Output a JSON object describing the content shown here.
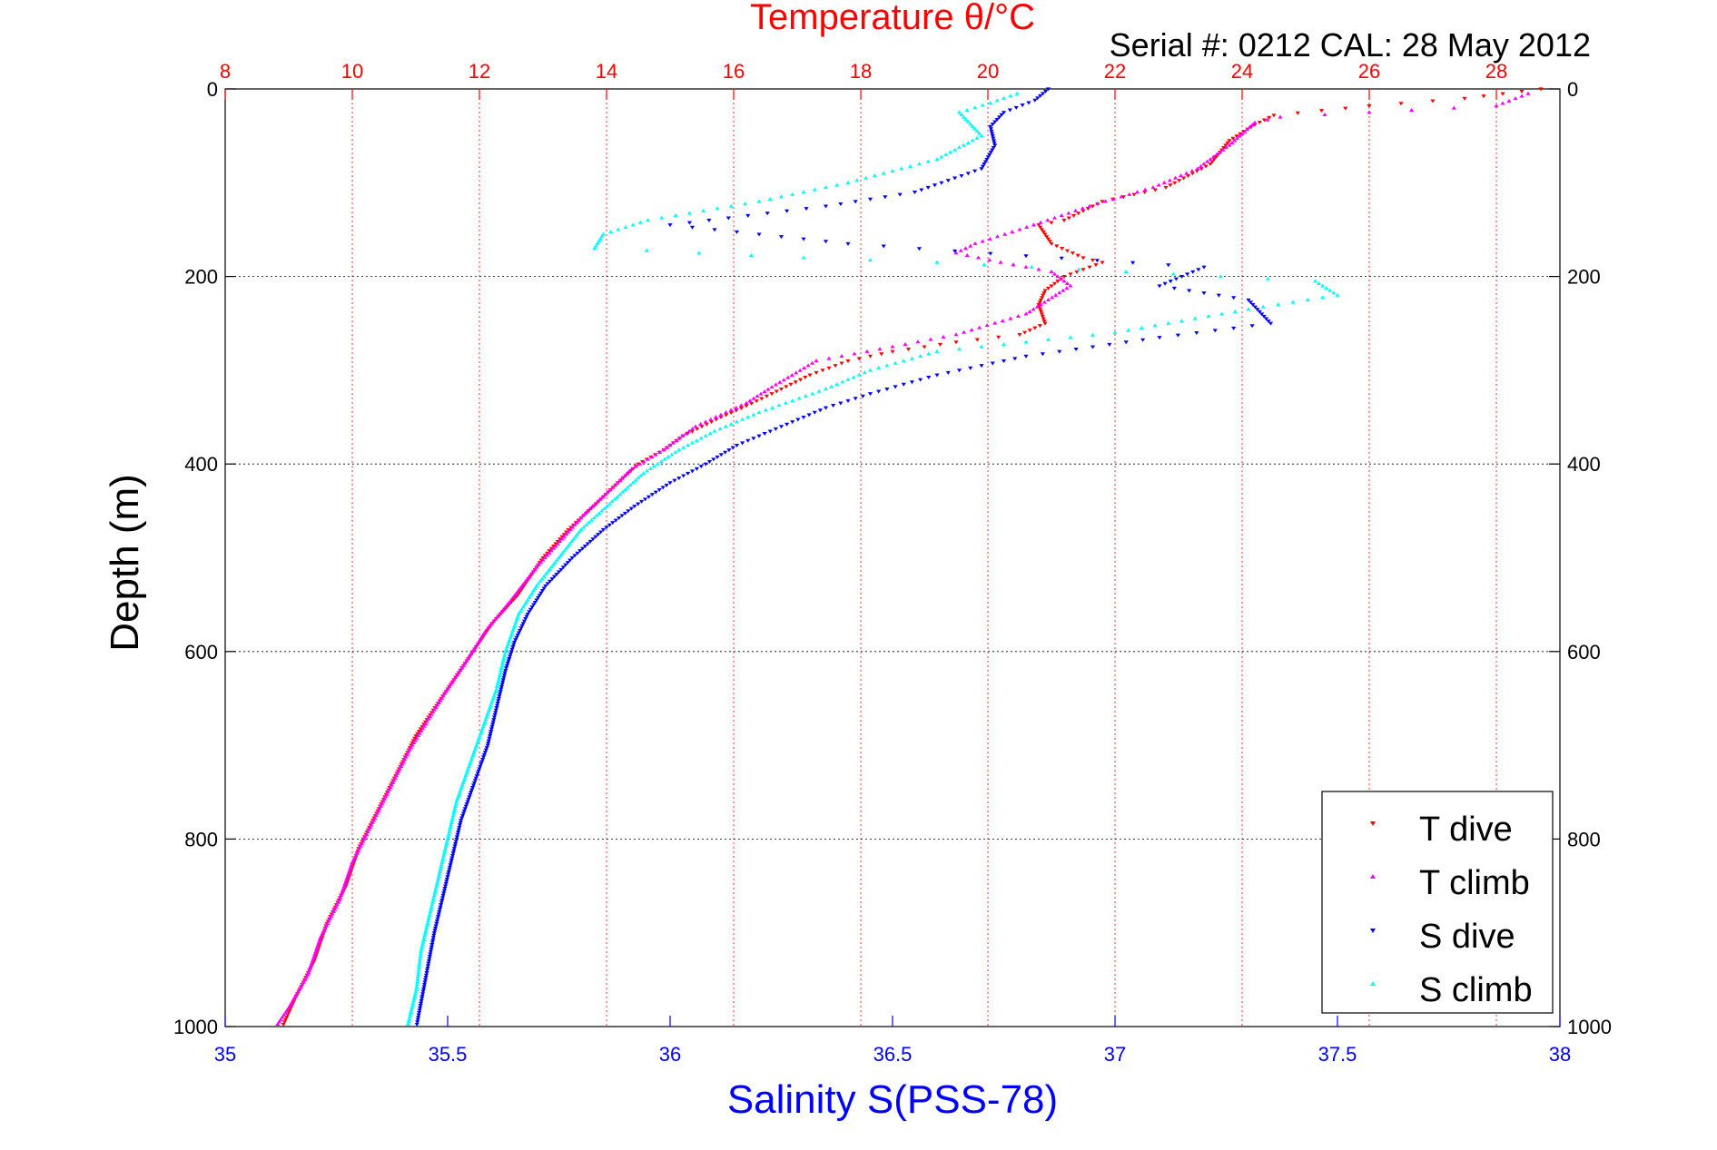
{
  "header": {
    "top_title": "Temperature θ/°C",
    "serial_info": "Serial #: 0212  CAL: 28 May 2012"
  },
  "axes": {
    "ylabel": "Depth (m)",
    "bottom_label": "Salinity S(PSS-78)"
  },
  "legend": {
    "items": [
      {
        "label": "T dive",
        "color": "#ff0000",
        "marker": "triangle-down"
      },
      {
        "label": "T climb",
        "color": "#ff00ff",
        "marker": "triangle-up"
      },
      {
        "label": "S dive",
        "color": "#0000ff",
        "marker": "triangle-down"
      },
      {
        "label": "S climb",
        "color": "#00ffff",
        "marker": "triangle-up"
      }
    ]
  },
  "colors": {
    "temperature_axis": "#ff0000",
    "salinity_axis": "#0000ff",
    "t_dive": "#ff0000",
    "t_climb": "#ff00ff",
    "s_dive": "#0000ff",
    "s_climb": "#00ffff"
  },
  "chart_data": {
    "type": "scatter",
    "y_axis": {
      "label": "Depth (m)",
      "range": [
        0,
        1000
      ],
      "reversed": true,
      "ticks": [
        0,
        200,
        400,
        600,
        800,
        1000
      ]
    },
    "top_axis": {
      "label": "Temperature θ/°C",
      "range": [
        8,
        29
      ],
      "ticks": [
        8,
        10,
        12,
        14,
        16,
        18,
        20,
        22,
        24,
        26,
        28
      ],
      "grid": true
    },
    "bottom_axis": {
      "label": "Salinity S(PSS-78)",
      "range": [
        35,
        38
      ],
      "ticks": [
        35,
        35.5,
        36,
        36.5,
        37,
        37.5,
        38
      ]
    },
    "legend_position": "bottom-right",
    "series": [
      {
        "name": "T dive",
        "axis": "temperature",
        "marker": "v",
        "points": [
          [
            28.7,
            0
          ],
          [
            27.5,
            10
          ],
          [
            26,
            18
          ],
          [
            24.5,
            28
          ],
          [
            24.2,
            38
          ],
          [
            23.8,
            55
          ],
          [
            23.5,
            80
          ],
          [
            22.8,
            105
          ],
          [
            21.8,
            120
          ],
          [
            21.2,
            140
          ],
          [
            20.8,
            145
          ],
          [
            21,
            165
          ],
          [
            21.5,
            180
          ],
          [
            21.8,
            185
          ],
          [
            21.2,
            200
          ],
          [
            20.9,
            215
          ],
          [
            20.8,
            230
          ],
          [
            20.9,
            250
          ],
          [
            20.5,
            262
          ],
          [
            19.5,
            270
          ],
          [
            18.5,
            280
          ],
          [
            17.8,
            290
          ],
          [
            17.2,
            305
          ],
          [
            16.6,
            325
          ],
          [
            16.2,
            338
          ],
          [
            15.8,
            350
          ],
          [
            15.2,
            370
          ],
          [
            14.9,
            385
          ],
          [
            14.5,
            400
          ],
          [
            14.1,
            425
          ],
          [
            13.8,
            445
          ],
          [
            13.4,
            470
          ],
          [
            13.0,
            500
          ],
          [
            12.6,
            540
          ],
          [
            12.2,
            570
          ],
          [
            11.9,
            600
          ],
          [
            11.6,
            630
          ],
          [
            11.3,
            660
          ],
          [
            11.0,
            690
          ],
          [
            10.7,
            730
          ],
          [
            10.4,
            770
          ],
          [
            10.1,
            810
          ],
          [
            9.9,
            850
          ],
          [
            9.6,
            890
          ],
          [
            9.4,
            930
          ],
          [
            9.1,
            970
          ],
          [
            8.9,
            1000
          ]
        ]
      },
      {
        "name": "T climb",
        "axis": "temperature",
        "marker": "^",
        "points": [
          [
            28.5,
            5
          ],
          [
            28,
            18
          ],
          [
            26,
            25
          ],
          [
            24.6,
            30
          ],
          [
            24.2,
            36
          ],
          [
            23.8,
            60
          ],
          [
            23.3,
            85
          ],
          [
            22.6,
            105
          ],
          [
            21.6,
            125
          ],
          [
            20.5,
            150
          ],
          [
            19.8,
            165
          ],
          [
            19.5,
            175
          ],
          [
            20.2,
            185
          ],
          [
            21.0,
            195
          ],
          [
            21.3,
            210
          ],
          [
            20.6,
            240
          ],
          [
            19.5,
            262
          ],
          [
            18.5,
            275
          ],
          [
            17.3,
            290
          ],
          [
            16.6,
            318
          ],
          [
            16.2,
            335
          ],
          [
            15.4,
            360
          ],
          [
            14.9,
            385
          ],
          [
            14.4,
            405
          ],
          [
            14.1,
            425
          ],
          [
            13.7,
            450
          ],
          [
            13.3,
            480
          ],
          [
            12.9,
            510
          ],
          [
            12.5,
            545
          ],
          [
            12.1,
            578
          ],
          [
            11.8,
            610
          ],
          [
            11.5,
            640
          ],
          [
            11.2,
            672
          ],
          [
            10.9,
            705
          ],
          [
            10.6,
            745
          ],
          [
            10.3,
            785
          ],
          [
            10.0,
            825
          ],
          [
            9.8,
            865
          ],
          [
            9.5,
            905
          ],
          [
            9.3,
            945
          ],
          [
            9.0,
            980
          ],
          [
            8.8,
            1000
          ]
        ]
      },
      {
        "name": "S dive",
        "axis": "salinity",
        "points": [],
        "marker": "v",
        "xy": [
          [
            36.85,
            0
          ],
          [
            36.82,
            12
          ],
          [
            36.75,
            25
          ],
          [
            36.72,
            40
          ],
          [
            36.73,
            60
          ],
          [
            36.7,
            85
          ],
          [
            36.55,
            110
          ],
          [
            36.35,
            125
          ],
          [
            36.0,
            145
          ],
          [
            36.4,
            165
          ],
          [
            36.8,
            178
          ],
          [
            37.2,
            190
          ],
          [
            37.1,
            210
          ],
          [
            37.3,
            225
          ],
          [
            37.35,
            250
          ],
          [
            37.1,
            265
          ],
          [
            36.8,
            285
          ],
          [
            36.6,
            305
          ],
          [
            36.45,
            325
          ],
          [
            36.35,
            340
          ],
          [
            36.25,
            360
          ],
          [
            36.15,
            380
          ],
          [
            36.08,
            400
          ],
          [
            36.0,
            420
          ],
          [
            35.92,
            445
          ],
          [
            35.85,
            470
          ],
          [
            35.78,
            500
          ],
          [
            35.72,
            530
          ],
          [
            35.68,
            560
          ],
          [
            35.65,
            590
          ],
          [
            35.63,
            620
          ],
          [
            35.61,
            660
          ],
          [
            35.59,
            700
          ],
          [
            35.56,
            740
          ],
          [
            35.53,
            780
          ],
          [
            35.51,
            820
          ],
          [
            35.49,
            860
          ],
          [
            35.47,
            900
          ],
          [
            35.45,
            950
          ],
          [
            35.43,
            1000
          ]
        ]
      },
      {
        "name": "S climb",
        "axis": "salinity",
        "points": [],
        "marker": "^",
        "xy": [
          [
            36.78,
            5
          ],
          [
            36.72,
            15
          ],
          [
            36.65,
            25
          ],
          [
            36.7,
            50
          ],
          [
            36.6,
            75
          ],
          [
            36.4,
            100
          ],
          [
            36.2,
            120
          ],
          [
            35.95,
            140
          ],
          [
            35.85,
            155
          ],
          [
            35.83,
            170
          ],
          [
            36.3,
            180
          ],
          [
            36.6,
            185
          ],
          [
            37.45,
            205
          ],
          [
            37.5,
            220
          ],
          [
            37.3,
            235
          ],
          [
            37.0,
            260
          ],
          [
            36.6,
            280
          ],
          [
            36.45,
            300
          ],
          [
            36.35,
            320
          ],
          [
            36.2,
            345
          ],
          [
            36.1,
            365
          ],
          [
            36.02,
            385
          ],
          [
            35.94,
            410
          ],
          [
            35.87,
            440
          ],
          [
            35.8,
            470
          ],
          [
            35.75,
            500
          ],
          [
            35.7,
            530
          ],
          [
            35.66,
            560
          ],
          [
            35.63,
            600
          ],
          [
            35.61,
            640
          ],
          [
            35.58,
            680
          ],
          [
            35.55,
            720
          ],
          [
            35.52,
            760
          ],
          [
            35.5,
            800
          ],
          [
            35.48,
            840
          ],
          [
            35.46,
            880
          ],
          [
            35.44,
            920
          ],
          [
            35.43,
            960
          ],
          [
            35.41,
            1000
          ]
        ]
      }
    ]
  }
}
